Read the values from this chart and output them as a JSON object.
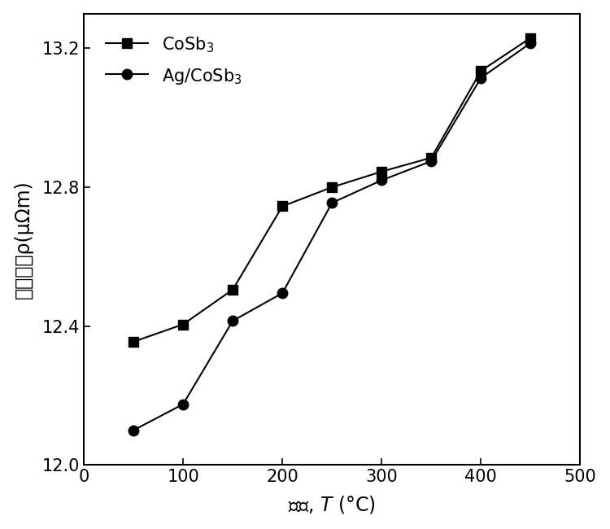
{
  "cosb3_x": [
    50,
    100,
    150,
    200,
    250,
    300,
    350,
    400,
    450
  ],
  "cosb3_y": [
    12.355,
    12.405,
    12.505,
    12.745,
    12.8,
    12.845,
    12.885,
    13.135,
    13.23
  ],
  "ag_cosb3_x": [
    50,
    100,
    150,
    200,
    250,
    300,
    350,
    400,
    450
  ],
  "ag_cosb3_y": [
    12.1,
    12.175,
    12.415,
    12.495,
    12.755,
    12.82,
    12.875,
    13.115,
    13.215
  ],
  "xlim": [
    0,
    500
  ],
  "ylim": [
    12.0,
    13.3
  ],
  "xticks": [
    0,
    100,
    200,
    300,
    400,
    500
  ],
  "yticks": [
    12.0,
    12.4,
    12.8,
    13.2
  ],
  "xlabel": "温度, $T$ (°C)",
  "ylabel": "电阻率，ρ(μΩm)",
  "legend_cosb3": "CoSb$_3$",
  "legend_ag_cosb3": "Ag/CoSb$_3$",
  "line_color": "#000000",
  "background_color": "#ffffff",
  "marker_size": 9,
  "linewidth": 1.5
}
